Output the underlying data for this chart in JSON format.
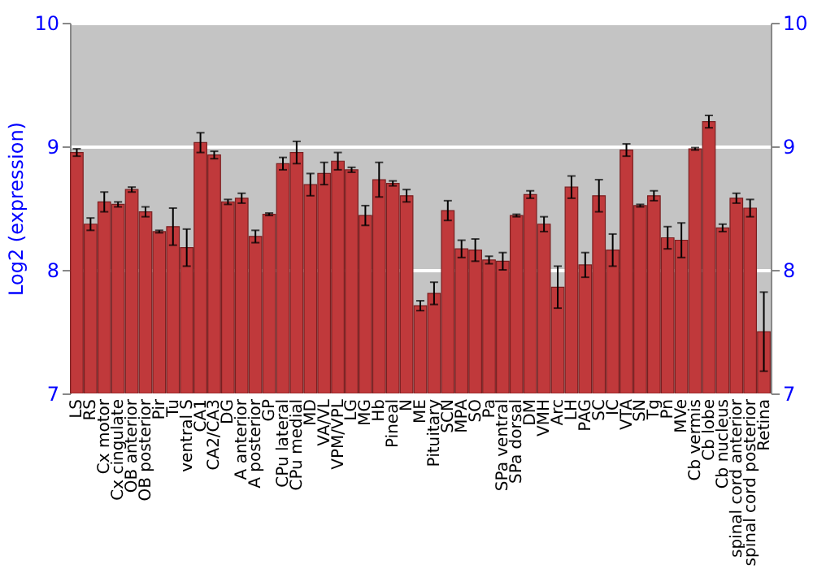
{
  "chart_data": {
    "type": "bar",
    "ylabel": "Log2 (expression)",
    "categories": [
      "LS",
      "RS",
      "Cx motor",
      "Cx cingulate",
      "OB anterior",
      "OB posterior",
      "Pir",
      "Tu",
      "ventral S",
      "CA1",
      "CA2/CA3",
      "DG",
      "A anterior",
      "A posterior",
      "GP",
      "CPu lateral",
      "CPu medial",
      "MD",
      "VA/VL",
      "VPM/VPL",
      "LG",
      "MG",
      "Hb",
      "Pineal",
      "N",
      "ME",
      "Pituitary",
      "SCN",
      "MPA",
      "SO",
      "Pa",
      "SPa ventral",
      "SPa dorsal",
      "DM",
      "VMH",
      "Arc",
      "LH",
      "PAG",
      "SC",
      "IC",
      "VTA",
      "SN",
      "Tg",
      "Pn",
      "MVe",
      "Cb vermis",
      "Cb lobe",
      "Cb nucleus",
      "spinal cord anterior",
      "spinal cord posterior",
      "Retina"
    ],
    "values": [
      8.95,
      8.37,
      8.55,
      8.53,
      8.65,
      8.47,
      8.31,
      8.35,
      8.18,
      9.03,
      8.93,
      8.55,
      8.58,
      8.27,
      8.45,
      8.86,
      8.95,
      8.69,
      8.78,
      8.88,
      8.81,
      8.44,
      8.73,
      8.7,
      8.6,
      7.71,
      7.81,
      8.48,
      8.17,
      8.16,
      8.08,
      8.07,
      8.44,
      8.61,
      8.37,
      7.86,
      8.67,
      8.04,
      8.6,
      8.16,
      8.97,
      8.52,
      8.6,
      8.26,
      8.24,
      8.98,
      9.2,
      8.34,
      8.58,
      8.5,
      7.5
    ],
    "errors": [
      0.03,
      0.05,
      0.08,
      0.02,
      0.02,
      0.04,
      0.01,
      0.15,
      0.15,
      0.08,
      0.03,
      0.02,
      0.04,
      0.05,
      0.01,
      0.05,
      0.09,
      0.09,
      0.09,
      0.07,
      0.02,
      0.08,
      0.14,
      0.02,
      0.05,
      0.04,
      0.09,
      0.08,
      0.07,
      0.09,
      0.03,
      0.07,
      0.01,
      0.03,
      0.06,
      0.17,
      0.09,
      0.1,
      0.13,
      0.13,
      0.05,
      0.01,
      0.04,
      0.09,
      0.14,
      0.01,
      0.05,
      0.03,
      0.04,
      0.07,
      0.32
    ],
    "color": "#c0393b",
    "ylim": [
      7,
      10
    ],
    "yticks": [
      7,
      8,
      9,
      10
    ],
    "y2lim": [
      7,
      10
    ],
    "y2ticks": [
      7,
      8,
      9,
      10
    ],
    "grid": "y"
  }
}
